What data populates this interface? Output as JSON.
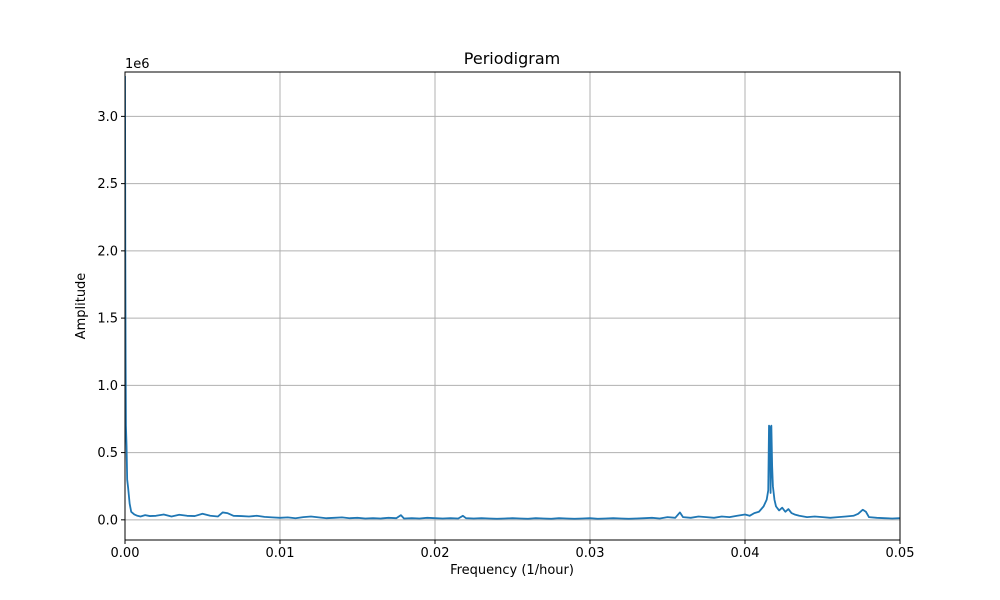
{
  "chart_data": {
    "type": "line",
    "title": "Periodigram",
    "xlabel": "Frequency (1/hour)",
    "ylabel": "Amplitude",
    "y_offset_label": "1e6",
    "xlim": [
      0,
      0.05
    ],
    "ylim": [
      -150000,
      3330000
    ],
    "grid": true,
    "x_ticks": [
      0,
      0.01,
      0.02,
      0.03,
      0.04,
      0.05
    ],
    "x_tick_labels": [
      "0.00",
      "0.01",
      "0.02",
      "0.03",
      "0.04",
      "0.05"
    ],
    "y_ticks": [
      0,
      500000,
      1000000,
      1500000,
      2000000,
      2500000,
      3000000
    ],
    "y_tick_labels": [
      "0.0",
      "0.5",
      "1.0",
      "1.5",
      "2.0",
      "2.5",
      "3.0"
    ],
    "series": [
      {
        "color": "#1f77b4",
        "x": [
          0.0,
          2e-05,
          4e-05,
          6e-05,
          0.0001,
          0.00014,
          0.0002,
          0.0003,
          0.0004,
          0.0006,
          0.0008,
          0.001,
          0.0013,
          0.0016,
          0.002,
          0.0025,
          0.003,
          0.0035,
          0.004,
          0.0045,
          0.005,
          0.0055,
          0.006,
          0.0063,
          0.0066,
          0.007,
          0.0075,
          0.008,
          0.0085,
          0.009,
          0.0095,
          0.01,
          0.0105,
          0.011,
          0.0115,
          0.012,
          0.0125,
          0.013,
          0.0135,
          0.014,
          0.0145,
          0.015,
          0.0155,
          0.016,
          0.0165,
          0.017,
          0.0175,
          0.0178,
          0.018,
          0.0185,
          0.019,
          0.0195,
          0.02,
          0.0205,
          0.021,
          0.0215,
          0.0218,
          0.022,
          0.0225,
          0.023,
          0.0235,
          0.024,
          0.0245,
          0.025,
          0.0255,
          0.026,
          0.0265,
          0.027,
          0.0275,
          0.028,
          0.0285,
          0.029,
          0.0295,
          0.03,
          0.0305,
          0.031,
          0.0315,
          0.032,
          0.0325,
          0.033,
          0.0335,
          0.034,
          0.0345,
          0.035,
          0.0355,
          0.0358,
          0.036,
          0.0365,
          0.037,
          0.0375,
          0.038,
          0.0385,
          0.039,
          0.0395,
          0.04,
          0.0403,
          0.0406,
          0.0409,
          0.0412,
          0.0414,
          0.0415,
          0.04155,
          0.0416,
          0.04165,
          0.0417,
          0.04175,
          0.0418,
          0.0419,
          0.042,
          0.0422,
          0.0424,
          0.0426,
          0.0428,
          0.043,
          0.0432,
          0.0435,
          0.044,
          0.0445,
          0.045,
          0.0455,
          0.046,
          0.0465,
          0.047,
          0.0473,
          0.0476,
          0.0478,
          0.048,
          0.0485,
          0.049,
          0.0495,
          0.05
        ],
        "y": [
          3300000,
          2000000,
          1200000,
          700000,
          550000,
          300000,
          240000,
          120000,
          60000,
          40000,
          30000,
          25000,
          35000,
          28000,
          30000,
          40000,
          25000,
          38000,
          30000,
          28000,
          45000,
          30000,
          25000,
          55000,
          50000,
          30000,
          28000,
          25000,
          30000,
          22000,
          18000,
          15000,
          18000,
          12000,
          20000,
          25000,
          18000,
          12000,
          15000,
          18000,
          12000,
          15000,
          10000,
          12000,
          10000,
          15000,
          12000,
          35000,
          10000,
          12000,
          10000,
          15000,
          12000,
          10000,
          12000,
          10000,
          30000,
          12000,
          10000,
          12000,
          10000,
          8000,
          10000,
          12000,
          10000,
          8000,
          12000,
          10000,
          8000,
          12000,
          10000,
          8000,
          10000,
          12000,
          8000,
          10000,
          12000,
          10000,
          8000,
          10000,
          12000,
          15000,
          10000,
          20000,
          15000,
          55000,
          20000,
          15000,
          25000,
          20000,
          15000,
          25000,
          20000,
          30000,
          40000,
          30000,
          50000,
          60000,
          100000,
          150000,
          220000,
          700000,
          690000,
          200000,
          700000,
          400000,
          250000,
          150000,
          100000,
          70000,
          90000,
          60000,
          80000,
          50000,
          40000,
          30000,
          20000,
          25000,
          20000,
          15000,
          20000,
          25000,
          30000,
          45000,
          75000,
          60000,
          20000,
          15000,
          12000,
          10000,
          12000
        ]
      }
    ]
  }
}
